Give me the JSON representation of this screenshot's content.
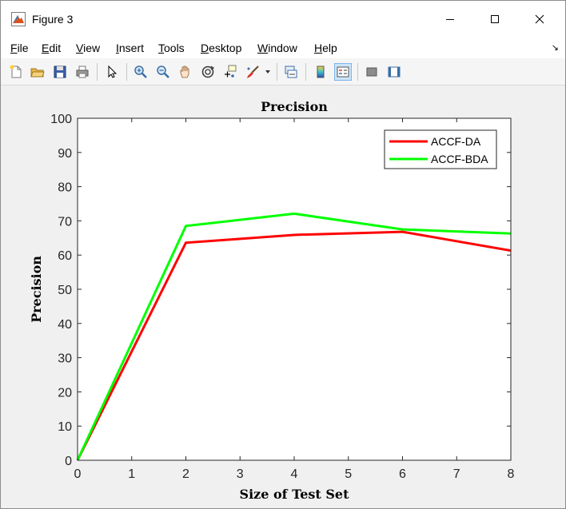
{
  "window": {
    "title": "Figure 3",
    "minimize_label": "Minimize",
    "maximize_label": "Maximize",
    "close_label": "Close"
  },
  "menu": {
    "items": [
      {
        "first": "F",
        "rest": "ile"
      },
      {
        "first": "E",
        "rest": "dit"
      },
      {
        "first": "V",
        "rest": "iew"
      },
      {
        "first": "I",
        "rest": "nsert"
      },
      {
        "first": "T",
        "rest": "ools"
      },
      {
        "first": "D",
        "rest": "esktop"
      },
      {
        "first": "W",
        "rest": "indow"
      },
      {
        "first": "H",
        "rest": "elp"
      }
    ],
    "dock_glyph": "↘"
  },
  "toolbar": {
    "icons": [
      "new-figure-icon",
      "open-file-icon",
      "save-icon",
      "print-icon",
      "edit-plot-icon",
      "zoom-in-icon",
      "zoom-out-icon",
      "pan-icon",
      "rotate-3d-icon",
      "data-cursor-icon",
      "brush-icon",
      "brush-dropdown-icon",
      "link-plot-icon",
      "insert-colorbar-icon",
      "insert-legend-icon",
      "hide-plot-tools-icon",
      "show-plot-tools-icon"
    ]
  },
  "colors": {
    "series1": "#ff0000",
    "series2": "#00ff00",
    "axis": "#262626",
    "plot_bg": "#ffffff",
    "figure_bg": "#f0f0f0"
  },
  "chart_data": {
    "type": "line",
    "title": "Precision",
    "xlabel": "Size of Test Set",
    "ylabel": "Precision",
    "xlim": [
      0,
      8
    ],
    "ylim": [
      0,
      100
    ],
    "xticks": [
      "0",
      "1",
      "2",
      "3",
      "4",
      "5",
      "6",
      "7",
      "8"
    ],
    "yticks": [
      "0",
      "10",
      "20",
      "30",
      "40",
      "50",
      "60",
      "70",
      "80",
      "90",
      "100"
    ],
    "grid": false,
    "legend_position": "top-right",
    "series": [
      {
        "name": "ACCF-DA",
        "x": [
          0,
          2,
          4,
          6,
          8
        ],
        "y": [
          0,
          63.6,
          65.9,
          66.8,
          61.3
        ]
      },
      {
        "name": "ACCF-BDA",
        "x": [
          0,
          2,
          4,
          6,
          8
        ],
        "y": [
          0,
          68.5,
          72.1,
          67.5,
          66.3
        ]
      }
    ]
  }
}
